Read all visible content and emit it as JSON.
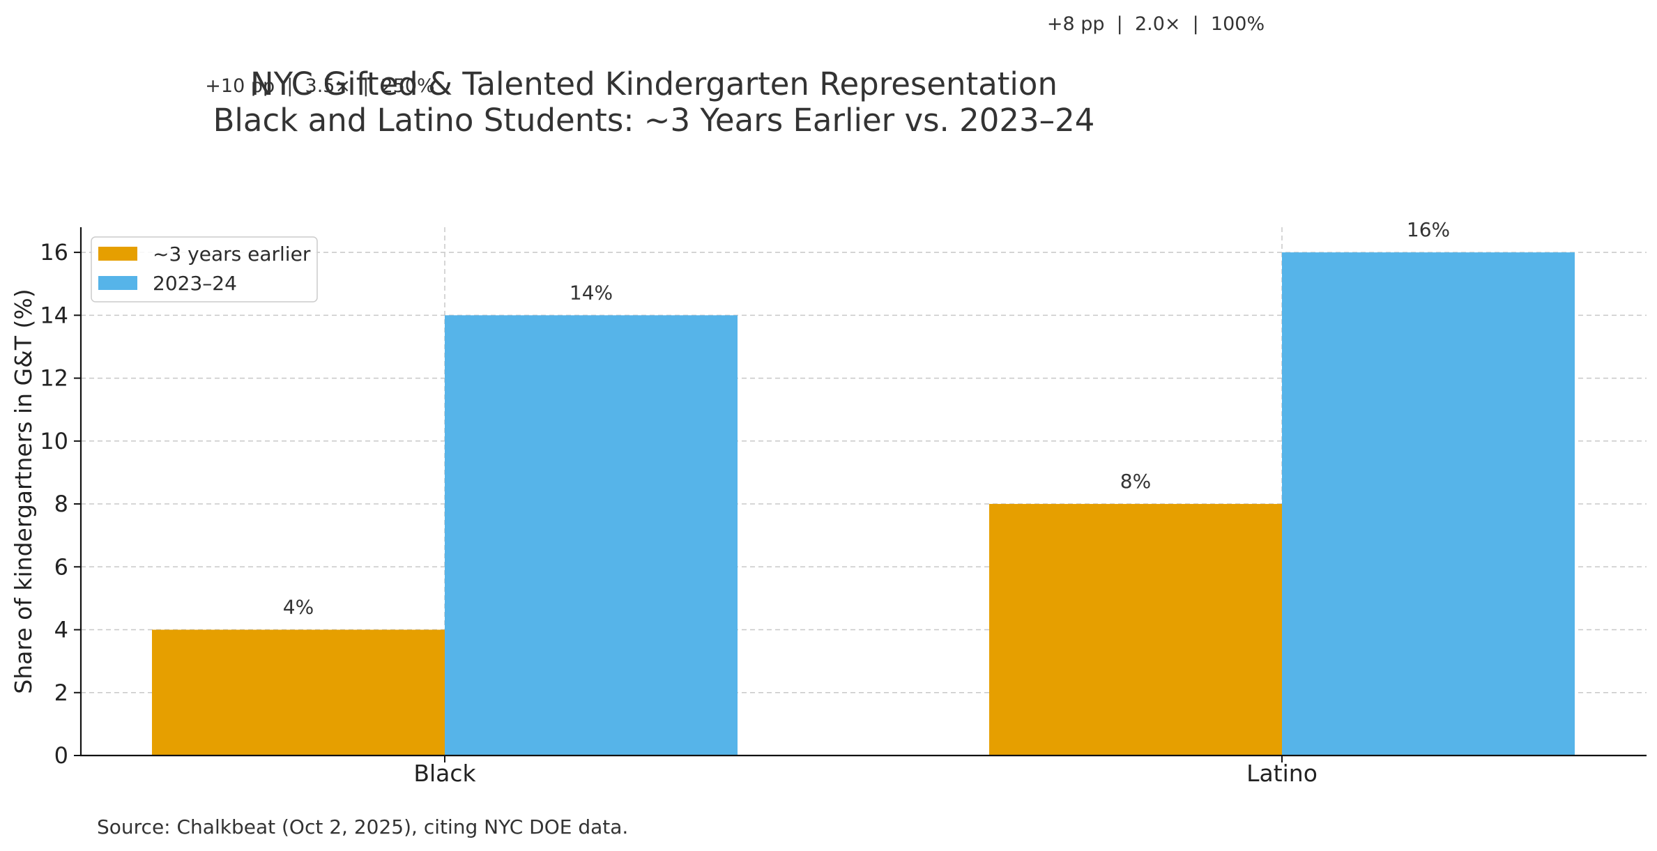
{
  "chart_data": {
    "type": "bar",
    "title": [
      "NYC Gifted & Talented Kindergarten Representation",
      "Black and Latino Students: ~3 Years Earlier vs. 2023–24"
    ],
    "categories": [
      "Black",
      "Latino"
    ],
    "series": [
      {
        "name": "~3 years earlier",
        "values": [
          4,
          8
        ],
        "labels": [
          "4%",
          "8%"
        ],
        "color": "#E69F00"
      },
      {
        "name": "2023–24",
        "values": [
          14,
          16
        ],
        "labels": [
          "14%",
          "16%"
        ],
        "color": "#56B4E9"
      }
    ],
    "xlabel": "",
    "ylabel": "Share of kindergartners in G&T (%)",
    "ylim": [
      0,
      16.8
    ],
    "yticks": [
      0,
      2,
      4,
      6,
      8,
      10,
      12,
      14,
      16
    ],
    "grid": true,
    "legend": "top-left",
    "annotations": [
      {
        "category": "Black",
        "text": "+10 pp  |  3.5×  |  250%"
      },
      {
        "category": "Latino",
        "text": "+8 pp  |  2.0×  |  100%"
      }
    ],
    "source": "Source: Chalkbeat (Oct 2, 2025), citing NYC DOE data."
  }
}
